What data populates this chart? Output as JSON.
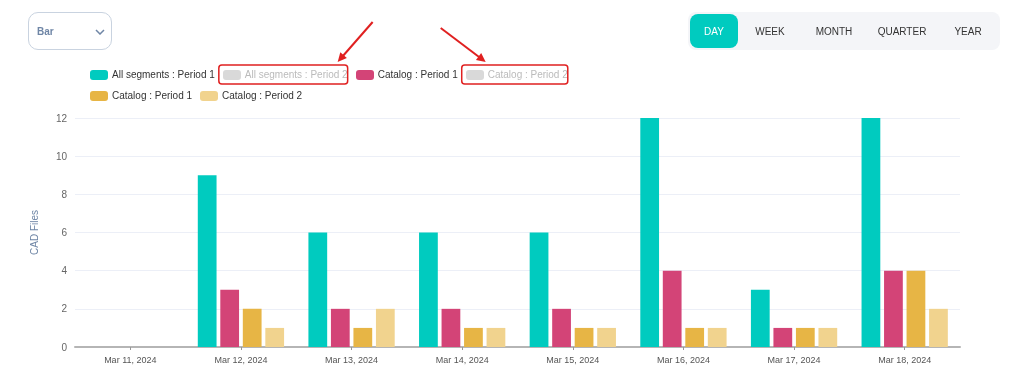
{
  "chart_data": {
    "type": "bar",
    "ylabel": "CAD Files",
    "categories": [
      "Mar 11, 2024",
      "Mar 12, 2024",
      "Mar 13, 2024",
      "Mar 14, 2024",
      "Mar 15, 2024",
      "Mar 16, 2024",
      "Mar 17, 2024",
      "Mar 18, 2024"
    ],
    "series": [
      {
        "name": "All segments : Period 1",
        "color": "#00cbbf",
        "values": [
          0,
          9,
          6,
          6,
          6,
          12,
          3,
          12
        ]
      },
      {
        "name": "All segments : Period 2",
        "color": "#d9d9d9",
        "values": [
          null,
          null,
          null,
          null,
          null,
          null,
          null,
          null
        ]
      },
      {
        "name": "Catalog : Period 1",
        "color": "#d34477",
        "values": [
          0,
          3,
          2,
          2,
          2,
          4,
          1,
          4
        ]
      },
      {
        "name": "Catalog : Period 2",
        "color": "#d9d9d9",
        "values": [
          null,
          null,
          null,
          null,
          null,
          null,
          null,
          null
        ]
      },
      {
        "name": "Catalog : Period 1",
        "color": "#e7b545",
        "values": [
          0,
          2,
          1,
          1,
          1,
          1,
          1,
          4
        ]
      },
      {
        "name": "Catalog : Period 2",
        "color": "#f1d38e",
        "values": [
          0,
          1,
          2,
          1,
          1,
          1,
          1,
          2
        ]
      }
    ],
    "ylim": [
      0,
      12
    ],
    "yticks": [
      0,
      2,
      4,
      6,
      8,
      10,
      12
    ],
    "grid": "y",
    "legend": "top",
    "annotations": [
      "Bar",
      "DAY",
      "WEEK",
      "MONTH",
      "QUARTER",
      "YEAR"
    ]
  }
}
